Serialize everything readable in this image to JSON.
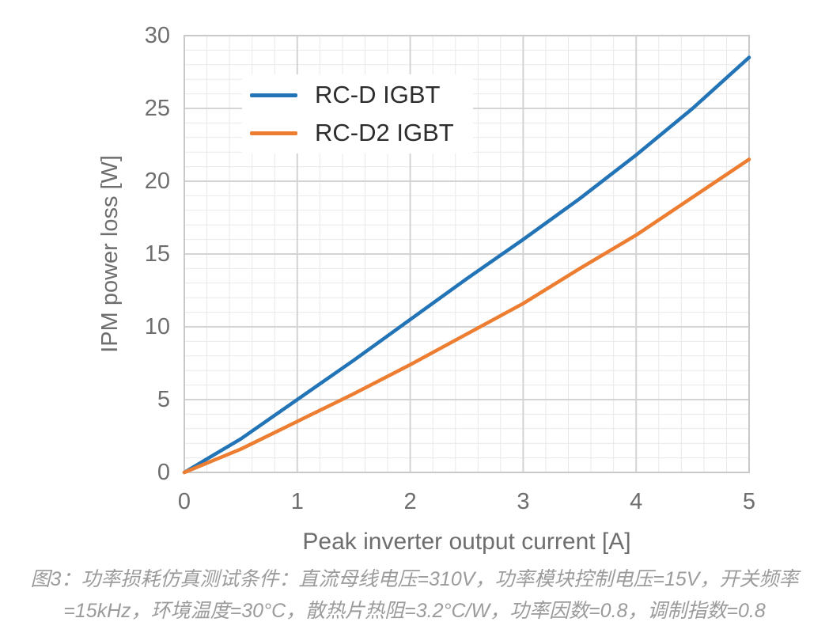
{
  "chart_data": {
    "type": "line",
    "title": "",
    "xlabel": "Peak inverter output current [A]",
    "ylabel": "IPM power loss [W]",
    "xlim": [
      0,
      5
    ],
    "ylim": [
      0,
      30
    ],
    "x_major_ticks": [
      0,
      1,
      2,
      3,
      4,
      5
    ],
    "y_major_ticks": [
      0,
      5,
      10,
      15,
      20,
      25,
      30
    ],
    "x_minor_step": 0.2,
    "y_minor_step": 1,
    "grid": true,
    "legend_position": "inside-top-left",
    "x": [
      0,
      0.5,
      1,
      1.5,
      2,
      2.5,
      3,
      3.5,
      4,
      4.5,
      5
    ],
    "series": [
      {
        "name": "RC-D IGBT",
        "color": "#2274B6",
        "values": [
          0,
          2.3,
          5.0,
          7.7,
          10.5,
          13.3,
          16.0,
          18.8,
          21.8,
          25.0,
          28.5
        ]
      },
      {
        "name": "RC-D2 IGBT",
        "color": "#ED7D31",
        "values": [
          0,
          1.6,
          3.5,
          5.4,
          7.4,
          9.5,
          11.6,
          14.0,
          16.3,
          18.9,
          21.5
        ]
      }
    ]
  },
  "caption": {
    "line1": "图3：功率损耗仿真测试条件：直流母线电压=310V，功率模块控制电压=15V，开关频率",
    "line2": "=15kHz，环境温度=30°C，散热片热阻=3.2°C/W，功率因数=0.8，调制指数=0.8"
  }
}
